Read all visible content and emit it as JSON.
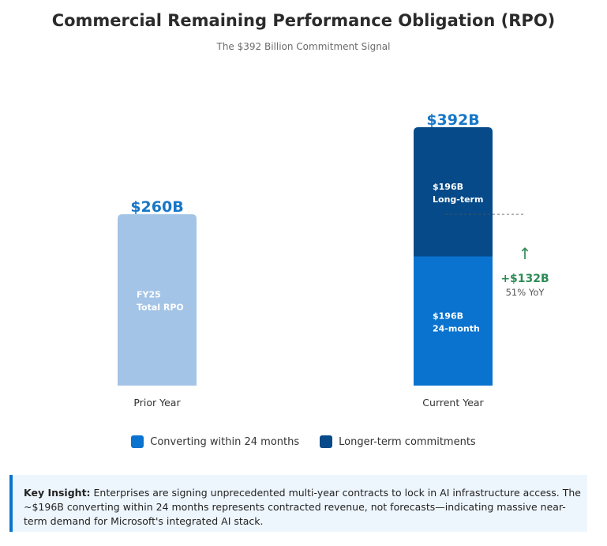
{
  "title": "Commercial Remaining Performance Obligation (RPO)",
  "subtitle": "The $392 Billion Commitment Signal",
  "colors": {
    "prior": "#a3c4e6",
    "short_term": "#0a73cf",
    "long_term": "#064a89",
    "value_label": "#1777c8",
    "growth": "#2e8b57"
  },
  "chart_data": {
    "type": "bar",
    "title": "Commercial Remaining Performance Obligation (RPO)",
    "subtitle": "The $392 Billion Commitment Signal",
    "categories": [
      "Prior Year",
      "Current Year"
    ],
    "ylim": [
      0,
      392
    ],
    "bars": [
      {
        "category": "Prior Year",
        "total": 260,
        "total_label": "$260B",
        "segments": [
          {
            "series": "FY25 Total RPO",
            "value": 260,
            "label_line1": "FY25",
            "label_line2": "Total RPO"
          }
        ]
      },
      {
        "category": "Current Year",
        "total": 392,
        "total_label": "$392B",
        "segments": [
          {
            "series": "Converting within 24 months",
            "value": 196,
            "label_line1": "$196B",
            "label_line2": "24-month"
          },
          {
            "series": "Longer-term commitments",
            "value": 196,
            "label_line1": "$196B",
            "label_line2": "Long-term"
          }
        ]
      }
    ],
    "annotation": {
      "arrow": "↑",
      "value_label": "+$132B",
      "yoy_label": "51% YoY",
      "value": 132,
      "yoy_percent": 51
    },
    "legend": [
      "Converting within 24 months",
      "Longer-term commitments"
    ]
  },
  "legend": {
    "item1": "Converting within 24 months",
    "item2": "Longer-term commitments"
  },
  "insight": {
    "heading": "Key Insight:",
    "text": " Enterprises are signing unprecedented multi-year contracts to lock in AI infrastructure access. The ~$196B converting within 24 months represents contracted revenue, not forecasts—indicating massive near-term demand for Microsoft's integrated AI stack."
  }
}
